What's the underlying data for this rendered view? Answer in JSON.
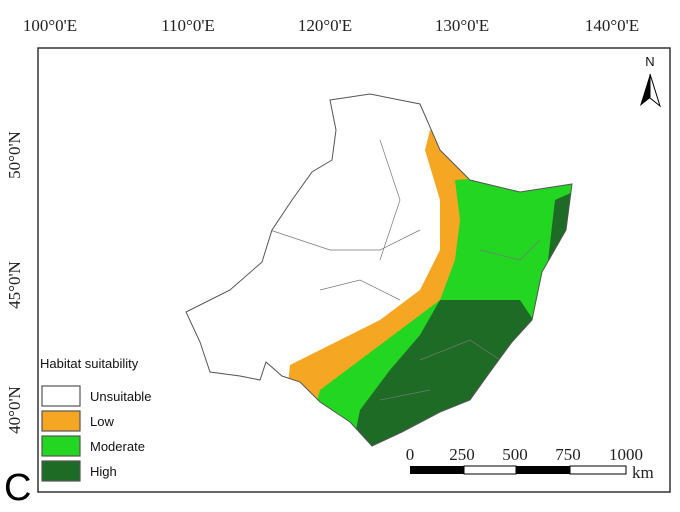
{
  "map": {
    "panel_label": "C",
    "north_arrow": "N",
    "longitude_labels": [
      "100°0'E",
      "110°0'E",
      "120°0'E",
      "130°0'E",
      "140°0'E"
    ],
    "latitude_labels": [
      "50°0'N",
      "45°0'N",
      "40°0'N"
    ],
    "legend": {
      "title": "Habitat suitability",
      "items": [
        {
          "label": "Unsuitable",
          "color": "#ffffff"
        },
        {
          "label": "Low",
          "color": "#f5a623"
        },
        {
          "label": "Moderate",
          "color": "#22d622"
        },
        {
          "label": "High",
          "color": "#1e6b25"
        }
      ]
    },
    "scale_bar": {
      "labels": [
        "0",
        "250",
        "500",
        "750",
        "1000"
      ],
      "unit": "km"
    }
  }
}
